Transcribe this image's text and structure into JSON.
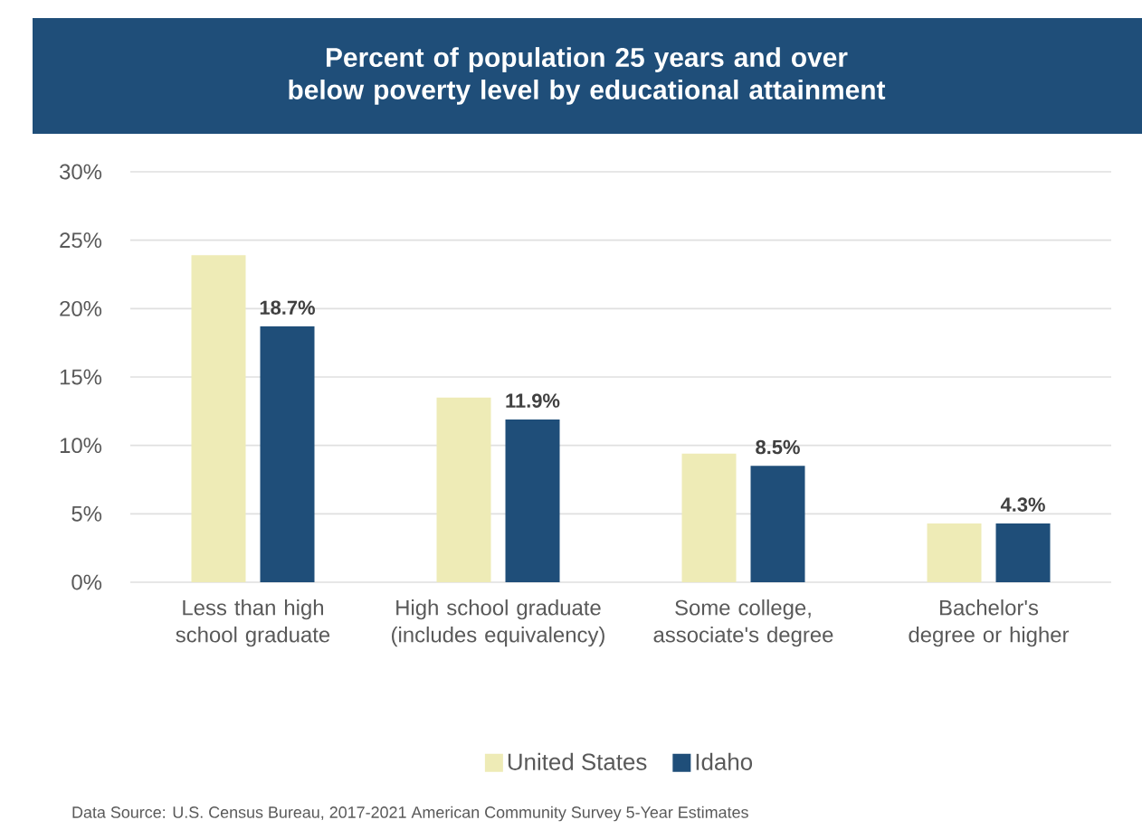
{
  "chart_data": {
    "type": "bar",
    "title": "Percent of population 25 years and over below poverty level by educational attainment",
    "categories": [
      "Less than high school graduate",
      "High school graduate (includes equivalency)",
      "Some college, associate's degree",
      "Bachelor's degree or higher"
    ],
    "series": [
      {
        "name": "United States",
        "color": "#eeebb6",
        "values": [
          23.9,
          13.5,
          9.4,
          4.3
        ]
      },
      {
        "name": "Idaho",
        "color": "#1f4e79",
        "values": [
          18.7,
          11.9,
          8.5,
          4.3
        ],
        "value_labels": [
          "18.7%",
          "11.9%",
          "8.5%",
          "4.3%"
        ]
      }
    ],
    "ylim": [
      0,
      30
    ],
    "yticks": [
      {
        "value": 0,
        "label": "0%"
      },
      {
        "value": 5,
        "label": "5%"
      },
      {
        "value": 10,
        "label": "10%"
      },
      {
        "value": 15,
        "label": "15%"
      },
      {
        "value": 20,
        "label": "20%"
      },
      {
        "value": 25,
        "label": "25%"
      },
      {
        "value": 30,
        "label": "30%"
      }
    ],
    "grid": "y",
    "legend": "bottom",
    "annotations": [
      "Data Source: U.S. Census Bureau, 2017-2021 American Community Survey 5-Year Estimates"
    ]
  }
}
